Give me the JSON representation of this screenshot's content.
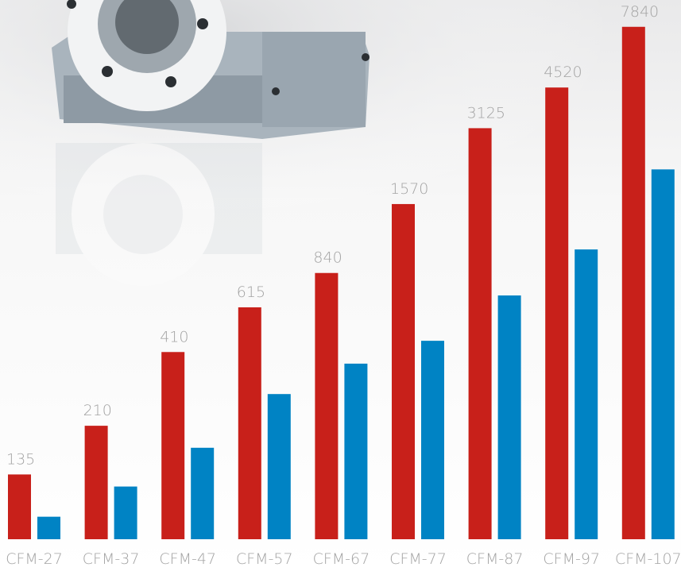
{
  "chart_data": {
    "type": "bar",
    "log_scale": true,
    "ylim": [
      75,
      10000
    ],
    "categories": [
      "CFM-27",
      "CFM-37",
      "CFM-47",
      "CFM-57",
      "CFM-67",
      "CFM-77",
      "CFM-87",
      "CFM-97",
      "CFM-107"
    ],
    "series": [
      {
        "color": "#c8201a",
        "values": [
          135,
          210,
          410,
          615,
          840,
          1570,
          3125,
          4520,
          7840
        ],
        "labeled": true
      },
      {
        "color": "#0083c4",
        "values": [
          92,
          121,
          172,
          280,
          369,
          454,
          685,
          1040,
          2150
        ],
        "labeled": false
      }
    ]
  }
}
